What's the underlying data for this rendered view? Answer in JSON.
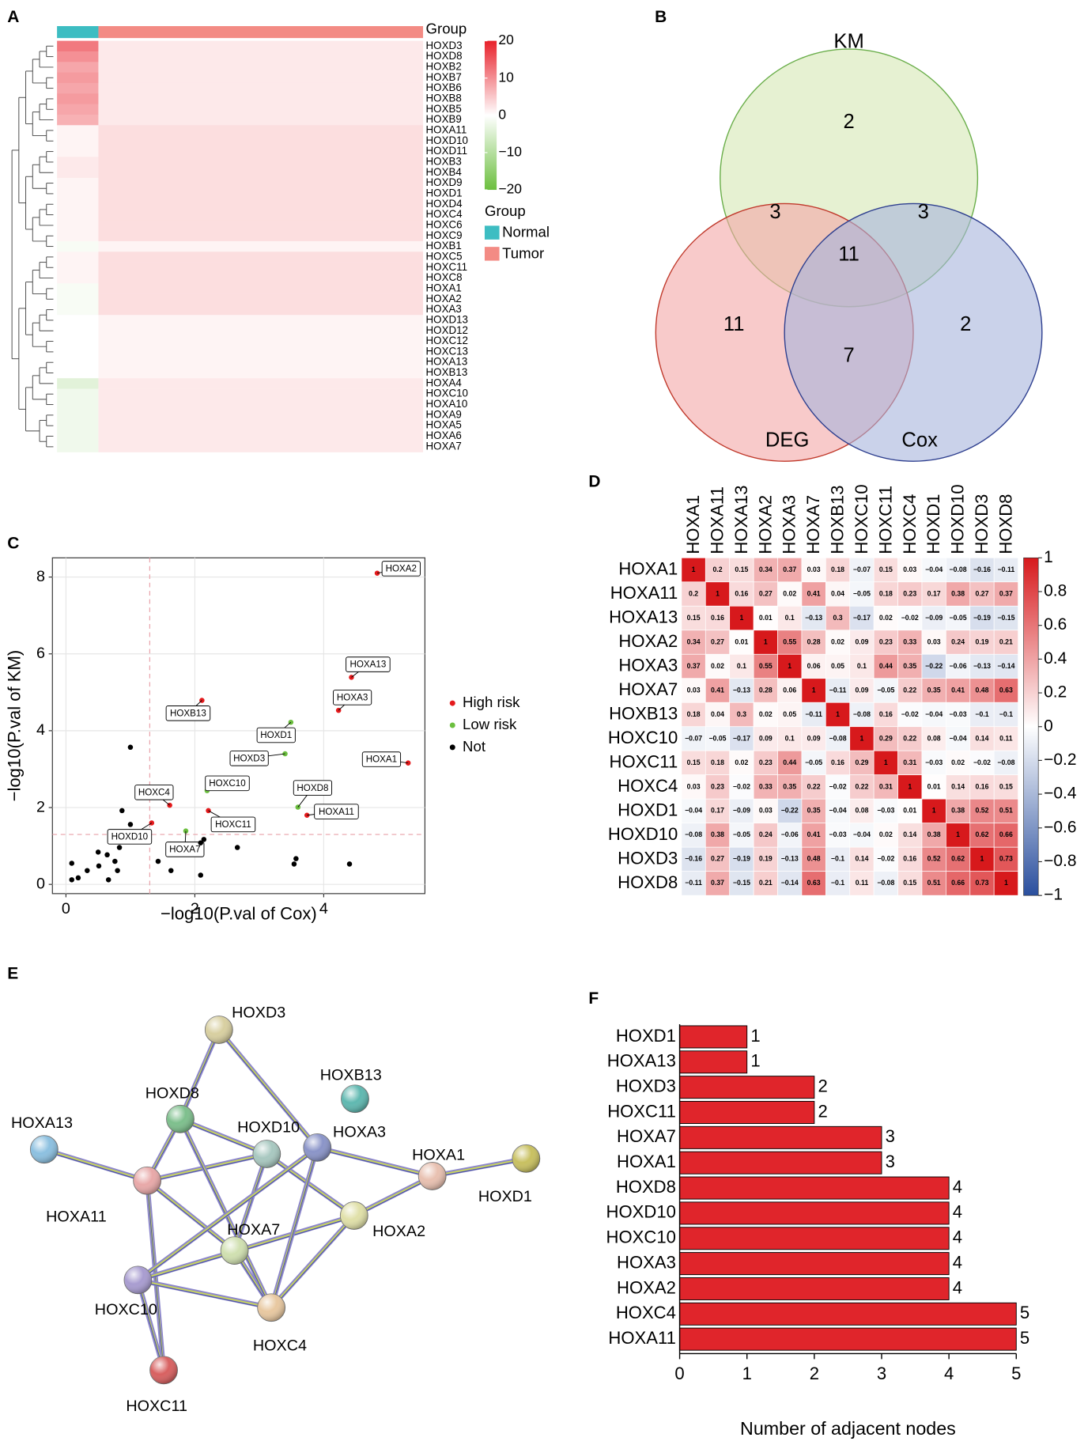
{
  "chart_data": [
    {
      "type": "heatmap",
      "panel": "A",
      "group_label": "Group",
      "legend_title": "Group",
      "categories": [
        "HOXD3",
        "HOXD8",
        "HOXB2",
        "HOXB7",
        "HOXB6",
        "HOXB8",
        "HOXB5",
        "HOXB9",
        "HOXA11",
        "HOXD10",
        "HOXD11",
        "HOXB3",
        "HOXB4",
        "HOXD9",
        "HOXD1",
        "HOXD4",
        "HOXC4",
        "HOXC6",
        "HOXC9",
        "HOXB1",
        "HOXC5",
        "HOXC11",
        "HOXC8",
        "HOXA1",
        "HOXA2",
        "HOXA3",
        "HOXD13",
        "HOXD12",
        "HOXC12",
        "HOXC13",
        "HOXA13",
        "HOXB13",
        "HOXA4",
        "HOXC10",
        "HOXA10",
        "HOXA9",
        "HOXA5",
        "HOXA6",
        "HOXA7"
      ],
      "series": [
        {
          "name": "Normal",
          "color": "#3dbdc2",
          "values": [
            12,
            10,
            8,
            9,
            8,
            9,
            8,
            7,
            1,
            1,
            1,
            2,
            2,
            1,
            1,
            1,
            1,
            1,
            1,
            -1,
            1,
            1,
            1,
            -1,
            -1,
            -1,
            0,
            0,
            0,
            0,
            0,
            0,
            -4,
            -2,
            -2,
            -2,
            -2,
            -2,
            -2
          ]
        },
        {
          "name": "Tumor",
          "color": "#f38b84",
          "values": [
            2,
            2,
            2,
            2,
            2,
            2,
            2,
            2,
            3,
            3,
            3,
            3,
            3,
            3,
            3,
            3,
            3,
            3,
            3,
            1,
            3,
            3,
            3,
            3,
            3,
            3,
            1,
            1,
            1,
            1,
            1,
            1,
            2,
            2,
            2,
            2,
            2,
            2,
            2
          ]
        }
      ],
      "clim": [
        -20,
        20
      ],
      "colorscale": [
        "#6cbf3f",
        "#ffffff",
        "#e8202a"
      ],
      "cticks": [
        20,
        10,
        0,
        {
          "value": -10,
          "label": "−10"
        },
        {
          "value": -20,
          "label": "−20"
        }
      ]
    },
    {
      "type": "venn",
      "panel": "B",
      "sets": [
        {
          "name": "KM",
          "color": "#6aae4a",
          "fill": "#d6e8b4"
        },
        {
          "name": "DEG",
          "color": "#c0392b",
          "fill": "#f3a6a6"
        },
        {
          "name": "Cox",
          "color": "#2e3f8f",
          "fill": "#a7b4dc"
        }
      ],
      "regions": [
        {
          "sets": [
            0
          ],
          "value": 2
        },
        {
          "sets": [
            0,
            1
          ],
          "value": 3
        },
        {
          "sets": [
            0,
            2
          ],
          "value": 3
        },
        {
          "sets": [
            0,
            1,
            2
          ],
          "value": 11
        },
        {
          "sets": [
            1
          ],
          "value": 11
        },
        {
          "sets": [
            1,
            2
          ],
          "value": 7
        },
        {
          "sets": [
            2
          ],
          "value": 2
        }
      ]
    },
    {
      "type": "scatter",
      "panel": "C",
      "xlabel": "−log10(P.val of Cox)",
      "ylabel": "−log10(P.val of KM)",
      "xlim": [
        -0.21,
        5.57
      ],
      "ylim": [
        -0.24,
        8.5
      ],
      "xticks": [
        0,
        2,
        4
      ],
      "yticks": [
        0,
        2,
        4,
        6,
        8
      ],
      "grid": true,
      "xline": 1.3,
      "yline": 1.3,
      "series": [
        {
          "name": "High risk",
          "color": "#e41a1c",
          "x": [
            4.83,
            4.43,
            4.23,
            2.11,
            5.31,
            3.74,
            1.61,
            2.21,
            1.33
          ],
          "values": [
            8.1,
            5.39,
            4.53,
            4.79,
            3.16,
            1.8,
            2.06,
            1.92,
            1.6
          ],
          "labels": [
            "HOXA2",
            "HOXA13",
            "HOXA3",
            "HOXB13",
            "HOXA1",
            "HOXA11",
            "HOXC4",
            "HOXC11",
            "HOXD10"
          ]
        },
        {
          "name": "Low risk",
          "color": "#6cbf3f",
          "x": [
            3.49,
            3.4,
            3.6,
            2.19,
            1.86
          ],
          "values": [
            4.22,
            3.4,
            2.01,
            2.44,
            1.39
          ],
          "labels": [
            "HOXD1",
            "HOXD3",
            "HOXD8",
            "HOXC10",
            "HOXA7"
          ]
        },
        {
          "name": "Not",
          "color": "#000000",
          "x": [
            1,
            0.87,
            1,
            0.09,
            0.19,
            0.33,
            0.51,
            0.64,
            0.66,
            0.76,
            0.8,
            0.83,
            0.09,
            0.5,
            1.43,
            1.63,
            2.09,
            2.14,
            2.09,
            2.66,
            3.54,
            3.57,
            4.4
          ],
          "values": [
            1.56,
            1.92,
            3.57,
            0.55,
            0.17,
            0.36,
            0.48,
            0.77,
            0.12,
            0.6,
            0.36,
            0.96,
            0.12,
            0.84,
            0.6,
            0.36,
            1.08,
            1.17,
            0.24,
            0.96,
            0.53,
            0.67,
            0.53
          ]
        }
      ]
    },
    {
      "type": "corrplot",
      "panel": "D",
      "labels": [
        "HOXA1",
        "HOXA11",
        "HOXA13",
        "HOXA2",
        "HOXA3",
        "HOXA7",
        "HOXB13",
        "HOXC10",
        "HOXC11",
        "HOXC4",
        "HOXD1",
        "HOXD10",
        "HOXD3",
        "HOXD8"
      ],
      "values": [
        [
          1,
          0.2,
          0.15,
          0.34,
          0.37,
          0.03,
          0.18,
          -0.07,
          0.15,
          0.03,
          -0.04,
          -0.08,
          -0.16,
          -0.11
        ],
        [
          0.2,
          1,
          0.16,
          0.27,
          0.02,
          0.41,
          0.04,
          -0.05,
          0.18,
          0.23,
          0.17,
          0.38,
          0.27,
          0.37
        ],
        [
          0.15,
          0.16,
          1,
          0.01,
          0.1,
          -0.13,
          0.3,
          -0.17,
          0.02,
          -0.02,
          -0.09,
          -0.05,
          -0.19,
          -0.15
        ],
        [
          0.34,
          0.27,
          0.01,
          1,
          0.55,
          0.28,
          0.02,
          0.09,
          0.23,
          0.33,
          0.03,
          0.24,
          0.19,
          0.21
        ],
        [
          0.37,
          0.02,
          0.1,
          0.55,
          1,
          0.06,
          0.05,
          0.1,
          0.44,
          0.35,
          -0.22,
          -0.06,
          -0.13,
          -0.14
        ],
        [
          0.03,
          0.41,
          -0.13,
          0.28,
          0.06,
          1,
          -0.11,
          0.09,
          -0.05,
          0.22,
          0.35,
          0.41,
          0.48,
          0.63
        ],
        [
          0.18,
          0.04,
          0.3,
          0.02,
          0.05,
          -0.11,
          1,
          -0.08,
          0.16,
          -0.02,
          -0.04,
          -0.03,
          -0.1,
          -0.1
        ],
        [
          -0.07,
          -0.05,
          -0.17,
          0.09,
          0.1,
          0.09,
          -0.08,
          1,
          0.29,
          0.22,
          0.08,
          -0.04,
          0.14,
          0.11
        ],
        [
          0.15,
          0.18,
          0.02,
          0.23,
          0.44,
          -0.05,
          0.16,
          0.29,
          1,
          0.31,
          -0.03,
          0.02,
          -0.02,
          -0.08
        ],
        [
          0.03,
          0.23,
          -0.02,
          0.33,
          0.35,
          0.22,
          -0.02,
          0.22,
          0.31,
          1,
          0.01,
          0.14,
          0.16,
          0.15
        ],
        [
          -0.04,
          0.17,
          -0.09,
          0.03,
          -0.22,
          0.35,
          -0.04,
          0.08,
          -0.03,
          0.01,
          1,
          0.38,
          0.52,
          0.51
        ],
        [
          -0.08,
          0.38,
          -0.05,
          0.24,
          -0.06,
          0.41,
          -0.03,
          -0.04,
          0.02,
          0.14,
          0.38,
          1,
          0.62,
          0.66
        ],
        [
          -0.16,
          0.27,
          -0.19,
          0.19,
          -0.13,
          0.48,
          -0.1,
          0.14,
          -0.02,
          0.16,
          0.52,
          0.62,
          1,
          0.73
        ],
        [
          -0.11,
          0.37,
          -0.15,
          0.21,
          -0.14,
          0.63,
          -0.1,
          0.11,
          -0.08,
          0.15,
          0.51,
          0.66,
          0.73,
          1
        ]
      ],
      "value_labels": [
        [
          "1",
          "0.2",
          "0.15",
          "0.34",
          "0.37",
          "0.03",
          "0.18",
          "−0.07",
          "0.15",
          "0.03",
          "−0.04",
          "−0.08",
          "−0.16",
          "−0.11"
        ],
        [
          "0.2",
          "1",
          "0.16",
          "0.27",
          "0.02",
          "0.41",
          "0.04",
          "−0.05",
          "0.18",
          "0.23",
          "0.17",
          "0.38",
          "0.27",
          "0.37"
        ],
        [
          "0.15",
          "0.16",
          "1",
          "0.01",
          "0.1",
          "−0.13",
          "0.3",
          "−0.17",
          "0.02",
          "−0.02",
          "−0.09",
          "−0.05",
          "−0.19",
          "−0.15"
        ],
        [
          "0.34",
          "0.27",
          "0.01",
          "1",
          "0.55",
          "0.28",
          "0.02",
          "0.09",
          "0.23",
          "0.33",
          "0.03",
          "0.24",
          "0.19",
          "0.21"
        ],
        [
          "0.37",
          "0.02",
          "0.1",
          "0.55",
          "1",
          "0.06",
          "0.05",
          "0.1",
          "0.44",
          "0.35",
          "−0.22",
          "−0.06",
          "−0.13",
          "−0.14"
        ],
        [
          "0.03",
          "0.41",
          "−0.13",
          "0.28",
          "0.06",
          "1",
          "−0.11",
          "0.09",
          "−0.05",
          "0.22",
          "0.35",
          "0.41",
          "0.48",
          "0.63"
        ],
        [
          "0.18",
          "0.04",
          "0.3",
          "0.02",
          "0.05",
          "−0.11",
          "1",
          "−0.08",
          "0.16",
          "−0.02",
          "−0.04",
          "−0.03",
          "−0.1",
          "−0.1"
        ],
        [
          "−0.07",
          "−0.05",
          "−0.17",
          "0.09",
          "0.1",
          "0.09",
          "−0.08",
          "1",
          "0.29",
          "0.22",
          "0.08",
          "−0.04",
          "0.14",
          "0.11"
        ],
        [
          "0.15",
          "0.18",
          "0.02",
          "0.23",
          "0.44",
          "−0.05",
          "0.16",
          "0.29",
          "1",
          "0.31",
          "−0.03",
          "0.02",
          "−0.02",
          "−0.08"
        ],
        [
          "0.03",
          "0.23",
          "−0.02",
          "0.33",
          "0.35",
          "0.22",
          "−0.02",
          "0.22",
          "0.31",
          "1",
          "0.01",
          "0.14",
          "0.16",
          "0.15"
        ],
        [
          "−0.04",
          "0.17",
          "−0.09",
          "0.03",
          "−0.22",
          "0.35",
          "−0.04",
          "0.08",
          "−0.03",
          "0.01",
          "1",
          "0.38",
          "0.52",
          "0.51"
        ],
        [
          "−0.08",
          "0.38",
          "−0.05",
          "0.24",
          "−0.06",
          "0.41",
          "−0.03",
          "−0.04",
          "0.02",
          "0.14",
          "0.38",
          "1",
          "0.62",
          "0.66"
        ],
        [
          "−0.16",
          "0.27",
          "−0.19",
          "0.19",
          "−0.13",
          "0.48",
          "−0.1",
          "0.14",
          "−0.02",
          "0.16",
          "0.52",
          "0.62",
          "1",
          "0.73"
        ],
        [
          "−0.11",
          "0.37",
          "−0.15",
          "0.21",
          "−0.14",
          "0.63",
          "−0.1",
          "0.11",
          "−0.08",
          "0.15",
          "0.51",
          "0.66",
          "0.73",
          "1"
        ]
      ],
      "clim": [
        -1,
        1
      ],
      "colorscale": [
        "#2a4f9e",
        "#ffffff",
        "#d7191c"
      ],
      "cticks": [
        1,
        0.8,
        0.6,
        0.4,
        0.2,
        0,
        {
          "value": -0.2,
          "label": "−0.2"
        },
        {
          "value": -0.4,
          "label": "−0.4"
        },
        {
          "value": -0.6,
          "label": "−0.6"
        },
        {
          "value": -0.8,
          "label": "−0.8"
        },
        {
          "value": -1,
          "label": "−1"
        }
      ]
    },
    {
      "type": "network",
      "panel": "E",
      "nodes": [
        {
          "label": "HOXD3",
          "color": "#d8cfa0"
        },
        {
          "label": "HOXD8",
          "color": "#7dbf8c"
        },
        {
          "label": "HOXB13",
          "color": "#5fb8b0"
        },
        {
          "label": "HOXA13",
          "color": "#8cc0e0"
        },
        {
          "label": "HOXD10",
          "color": "#a8c8c0"
        },
        {
          "label": "HOXA3",
          "color": "#8a94c8"
        },
        {
          "label": "HOXA1",
          "color": "#e8c0b0"
        },
        {
          "label": "HOXD1",
          "color": "#c8c060"
        },
        {
          "label": "HOXA11",
          "color": "#e8a8a8"
        },
        {
          "label": "HOXA2",
          "color": "#e0e0a8"
        },
        {
          "label": "HOXA7",
          "color": "#d0e0b0"
        },
        {
          "label": "HOXC10",
          "color": "#a89cd0"
        },
        {
          "label": "HOXC4",
          "color": "#e8c8a0"
        },
        {
          "label": "HOXC11",
          "color": "#d86060"
        }
      ],
      "edges": [
        [
          7,
          6
        ],
        [
          3,
          8
        ],
        [
          0,
          1
        ],
        [
          0,
          5
        ],
        [
          13,
          11
        ],
        [
          13,
          8
        ],
        [
          6,
          5
        ],
        [
          6,
          9
        ],
        [
          10,
          4
        ],
        [
          10,
          12
        ],
        [
          10,
          8
        ],
        [
          8,
          1
        ],
        [
          8,
          4
        ],
        [
          1,
          4
        ],
        [
          1,
          12
        ],
        [
          4,
          9
        ],
        [
          11,
          12
        ],
        [
          11,
          5
        ],
        [
          11,
          9
        ],
        [
          5,
          12
        ],
        [
          9,
          12
        ]
      ]
    },
    {
      "type": "bar",
      "panel": "F",
      "orientation": "horizontal",
      "xlabel": "Number of adjacent nodes",
      "categories": [
        "HOXD1",
        "HOXA13",
        "HOXD3",
        "HOXC11",
        "HOXA7",
        "HOXA1",
        "HOXD8",
        "HOXD10",
        "HOXC10",
        "HOXA3",
        "HOXA2",
        "HOXC4",
        "HOXA11"
      ],
      "values": [
        1,
        1,
        2,
        2,
        3,
        3,
        4,
        4,
        4,
        4,
        4,
        5,
        5
      ],
      "color": "#e0252b",
      "xlim": [
        0,
        5
      ],
      "xticks": [
        0,
        1,
        2,
        3,
        4,
        5
      ]
    }
  ]
}
